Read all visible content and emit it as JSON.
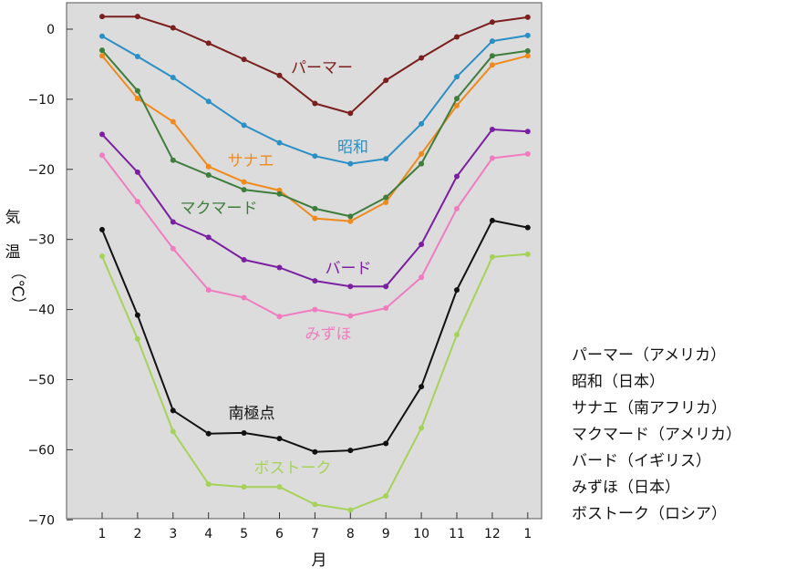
{
  "chart_data": {
    "type": "line",
    "x": [
      "1",
      "2",
      "3",
      "4",
      "5",
      "6",
      "7",
      "8",
      "9",
      "10",
      "11",
      "12",
      "1"
    ],
    "ylim": [
      -70,
      4
    ],
    "yticks": [
      0,
      -10,
      -20,
      -30,
      -40,
      -50,
      -60,
      -70
    ],
    "xlabel": "月",
    "ylabel": [
      "気",
      "温",
      "（℃）"
    ],
    "grid": false,
    "background": "#dcdcdc",
    "series": [
      {
        "name": "パーマー",
        "color": "#7a1e1e",
        "values": [
          1.8,
          1.8,
          0.2,
          -2.0,
          -4.3,
          -6.6,
          -10.6,
          -12.0,
          -7.3,
          -4.1,
          -1.1,
          1.0,
          1.7
        ]
      },
      {
        "name": "昭和",
        "color": "#2a8fc4",
        "values": [
          -1.0,
          -3.9,
          -6.9,
          -10.3,
          -13.7,
          -16.2,
          -18.1,
          -19.2,
          -18.5,
          -13.5,
          -6.8,
          -1.7,
          -0.9
        ]
      },
      {
        "name": "サナエ",
        "color": "#f08a1c",
        "values": [
          -3.8,
          -9.9,
          -13.2,
          -19.6,
          -21.8,
          -23.0,
          -27.0,
          -27.4,
          -24.7,
          -17.8,
          -10.9,
          -5.1,
          -3.8
        ]
      },
      {
        "name": "マクマード",
        "color": "#3f7d3c",
        "values": [
          -3.0,
          -8.8,
          -18.7,
          -20.8,
          -22.9,
          -23.5,
          -25.6,
          -26.7,
          -24.0,
          -19.2,
          -9.9,
          -3.8,
          -3.1
        ]
      },
      {
        "name": "バード",
        "color": "#7b1fa2",
        "values": [
          -15.0,
          -20.4,
          -27.5,
          -29.7,
          -32.9,
          -34.0,
          -35.9,
          -36.7,
          -36.7,
          -30.7,
          -21.0,
          -14.3,
          -14.6
        ]
      },
      {
        "name": "みずほ",
        "color": "#f07cc0",
        "values": [
          -18.0,
          -24.6,
          -31.3,
          -37.2,
          -38.3,
          -41.0,
          -40.0,
          -40.9,
          -39.8,
          -35.4,
          -25.6,
          -18.4,
          -17.8
        ]
      },
      {
        "name": "南極点",
        "color": "#111111",
        "values": [
          -28.6,
          -40.8,
          -54.4,
          -57.7,
          -57.6,
          -58.4,
          -60.3,
          -60.1,
          -59.1,
          -51.0,
          -37.2,
          -27.3,
          -28.3
        ]
      },
      {
        "name": "ボストーク",
        "color": "#a6d25a",
        "values": [
          -32.4,
          -44.2,
          -57.4,
          -64.9,
          -65.3,
          -65.3,
          -67.8,
          -68.6,
          -66.6,
          -56.9,
          -43.6,
          -32.5,
          -32.1
        ]
      }
    ]
  },
  "legend": [
    "パーマー（アメリカ）",
    "昭和（日本）",
    "サナエ（南アフリカ）",
    "マクマード（アメリカ）",
    "バード（イギリス）",
    "みずほ（日本）",
    "ボストーク（ロシア）"
  ]
}
